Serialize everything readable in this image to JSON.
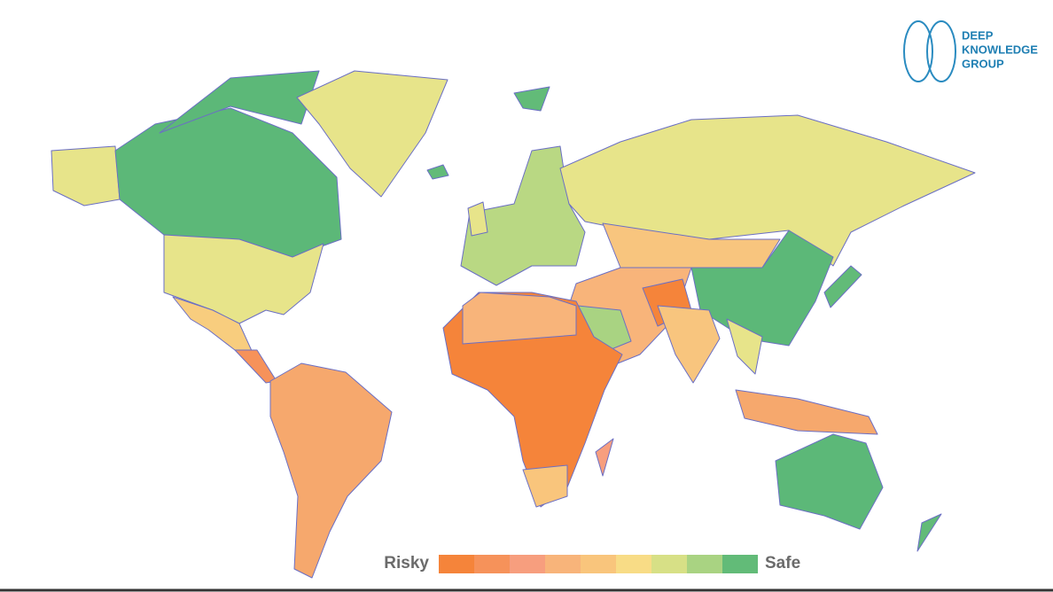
{
  "logo": {
    "lines": [
      "DEEP",
      "KNOWLEDGE",
      "GROUP"
    ]
  },
  "legend": {
    "low_label": "Risky",
    "high_label": "Safe",
    "colors": [
      "#f5843a",
      "#f6925a",
      "#f79e7e",
      "#f8b47a",
      "#f9c57c",
      "#f8dc86",
      "#d7e086",
      "#a9d382",
      "#62bb78"
    ]
  }
}
